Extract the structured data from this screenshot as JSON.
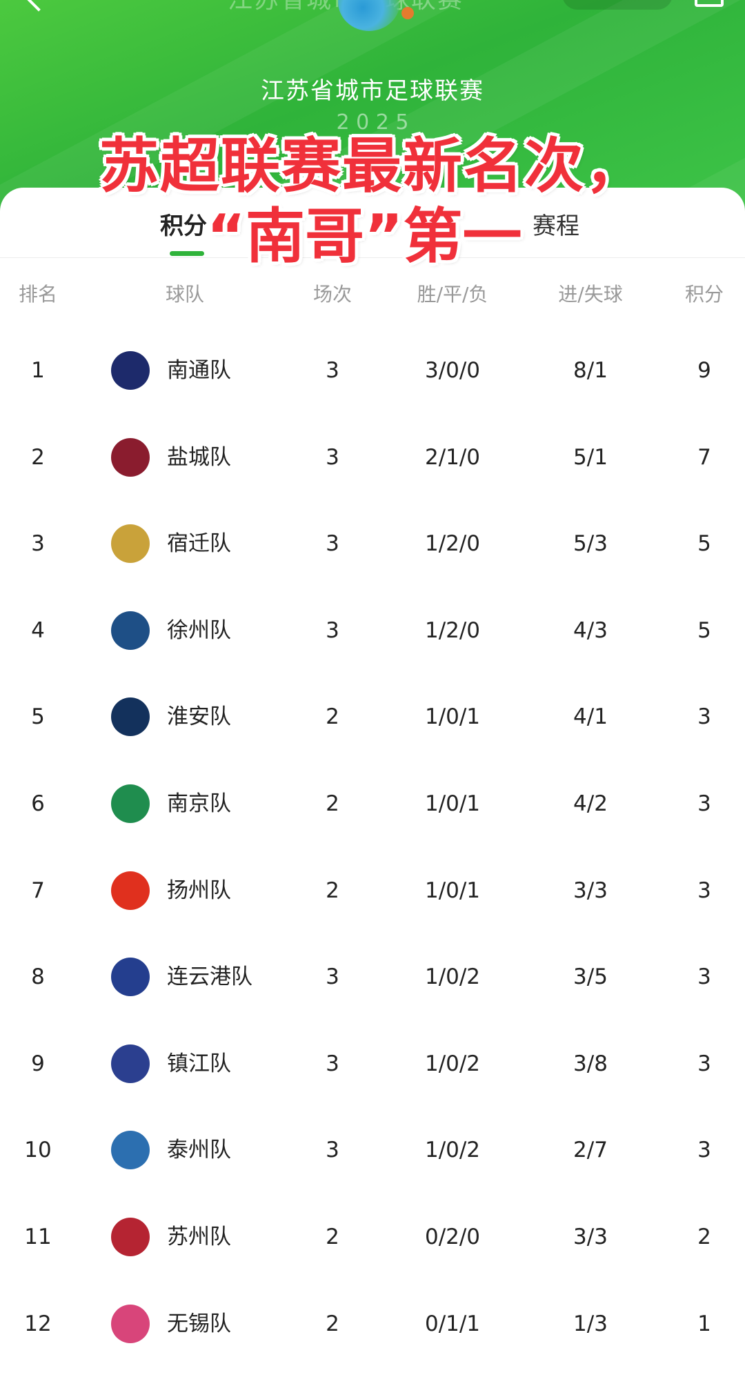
{
  "header": {
    "top_title": "江苏省城市足球联赛",
    "league_title": "江苏省城市足球联赛",
    "league_sub": "2 0 2 5"
  },
  "overlay": {
    "line1": "苏超联赛最新名次，",
    "line2": "“南哥”第一"
  },
  "tabs": [
    {
      "label": "积分",
      "active": true
    },
    {
      "label": "赛程",
      "active": false
    }
  ],
  "columns": [
    "排名",
    "球队",
    "场次",
    "胜/平/负",
    "进/失球",
    "积分"
  ],
  "colors": {
    "brand_green": "#2fb33a",
    "overlay_red": "#f0303a"
  },
  "teams": [
    {
      "rank": "1",
      "name": "南通队",
      "played": "3",
      "wdl": "3/0/0",
      "goals": "8/1",
      "points": "9",
      "logo_color": "#1d2a6b",
      "logo_icon": "nantong-logo-icon"
    },
    {
      "rank": "2",
      "name": "盐城队",
      "played": "3",
      "wdl": "2/1/0",
      "goals": "5/1",
      "points": "7",
      "logo_color": "#8a1c2e",
      "logo_icon": "yancheng-logo-icon"
    },
    {
      "rank": "3",
      "name": "宿迁队",
      "played": "3",
      "wdl": "1/2/0",
      "goals": "5/3",
      "points": "5",
      "logo_color": "#c9a23a",
      "logo_icon": "suqian-logo-icon"
    },
    {
      "rank": "4",
      "name": "徐州队",
      "played": "3",
      "wdl": "1/2/0",
      "goals": "4/3",
      "points": "5",
      "logo_color": "#1e4f86",
      "logo_icon": "xuzhou-logo-icon"
    },
    {
      "rank": "5",
      "name": "淮安队",
      "played": "2",
      "wdl": "1/0/1",
      "goals": "4/1",
      "points": "3",
      "logo_color": "#13315c",
      "logo_icon": "huaian-logo-icon"
    },
    {
      "rank": "6",
      "name": "南京队",
      "played": "2",
      "wdl": "1/0/1",
      "goals": "4/2",
      "points": "3",
      "logo_color": "#1f8d4e",
      "logo_icon": "nanjing-logo-icon"
    },
    {
      "rank": "7",
      "name": "扬州队",
      "played": "2",
      "wdl": "1/0/1",
      "goals": "3/3",
      "points": "3",
      "logo_color": "#e0301e",
      "logo_icon": "yangzhou-logo-icon"
    },
    {
      "rank": "8",
      "name": "连云港队",
      "played": "3",
      "wdl": "1/0/2",
      "goals": "3/5",
      "points": "3",
      "logo_color": "#243e8e",
      "logo_icon": "lianyungang-logo-icon"
    },
    {
      "rank": "9",
      "name": "镇江队",
      "played": "3",
      "wdl": "1/0/2",
      "goals": "3/8",
      "points": "3",
      "logo_color": "#2b3f8f",
      "logo_icon": "zhenjiang-logo-icon"
    },
    {
      "rank": "10",
      "name": "泰州队",
      "played": "3",
      "wdl": "1/0/2",
      "goals": "2/7",
      "points": "3",
      "logo_color": "#2c6fb0",
      "logo_icon": "taizhou-logo-icon"
    },
    {
      "rank": "11",
      "name": "苏州队",
      "played": "2",
      "wdl": "0/2/0",
      "goals": "3/3",
      "points": "2",
      "logo_color": "#b52432",
      "logo_icon": "suzhou-logo-icon"
    },
    {
      "rank": "12",
      "name": "无锡队",
      "played": "2",
      "wdl": "0/1/1",
      "goals": "1/3",
      "points": "1",
      "logo_color": "#d8457a",
      "logo_icon": "wuxi-logo-icon"
    }
  ]
}
